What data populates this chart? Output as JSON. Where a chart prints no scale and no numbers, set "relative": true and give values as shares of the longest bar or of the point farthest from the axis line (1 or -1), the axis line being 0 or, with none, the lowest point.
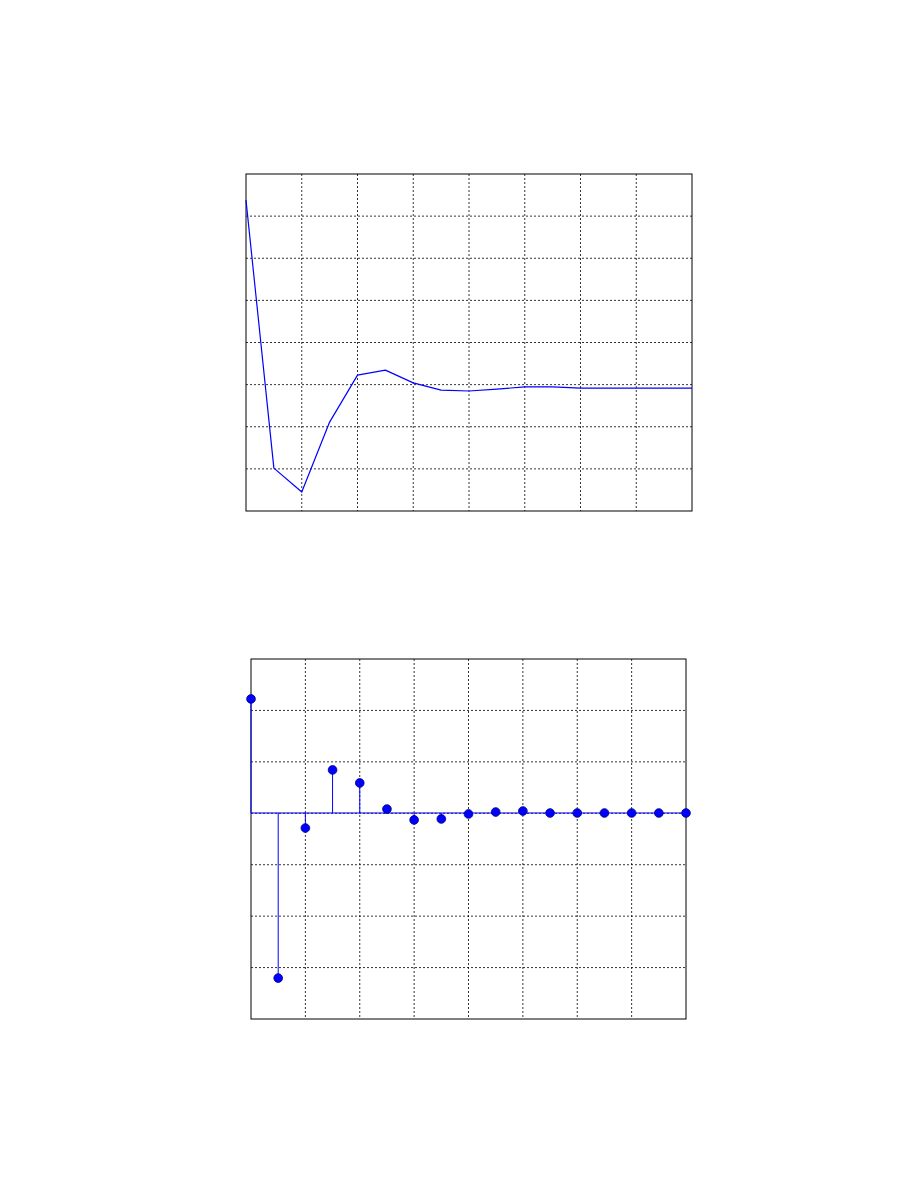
{
  "chart_data": [
    {
      "type": "line",
      "relative": true,
      "grid": true,
      "color": "#0000ff",
      "categories": [
        null,
        null,
        null,
        null,
        null,
        null,
        null,
        null,
        null,
        null,
        null,
        null,
        null,
        null,
        null,
        null,
        null
      ],
      "values": [
        1,
        0.138,
        0.061,
        0.286,
        0.437,
        0.453,
        0.412,
        0.389,
        0.386,
        0.392,
        0.399,
        0.399,
        0.395,
        0.395,
        0.395,
        0.395,
        0.395
      ]
    },
    {
      "type": "lollipop",
      "relative": true,
      "grid": true,
      "color": "#0000ff",
      "marker": "circle",
      "ref_lines": [
        {
          "axis": "y",
          "value": 0,
          "color": "#0000ff"
        }
      ],
      "categories": [
        null,
        null,
        null,
        null,
        null,
        null,
        null,
        null,
        null,
        null,
        null,
        null,
        null,
        null,
        null,
        null,
        null
      ],
      "values": [
        0.691,
        -1,
        -0.091,
        0.261,
        0.182,
        0.024,
        -0.042,
        -0.036,
        -0.006,
        0.006,
        0.012,
        0,
        0,
        0,
        0,
        0,
        0
      ]
    }
  ]
}
